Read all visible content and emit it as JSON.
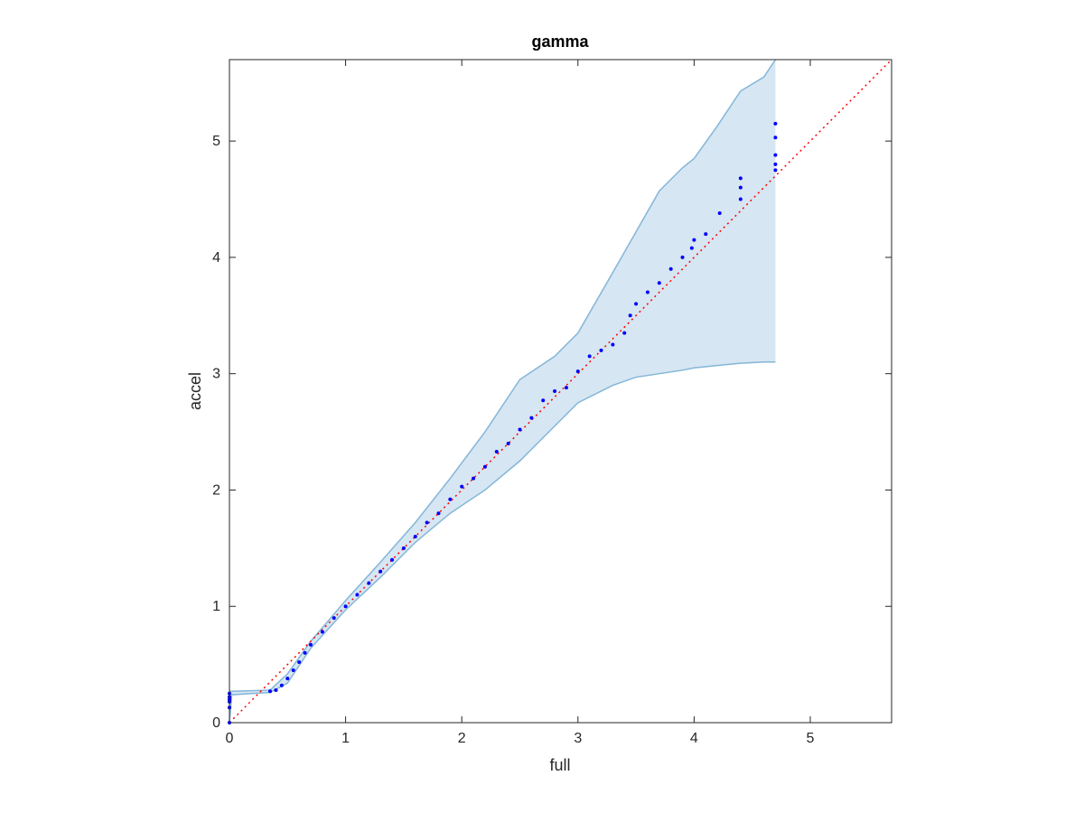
{
  "chart_data": {
    "type": "scatter",
    "title": "gamma",
    "x_label": "full",
    "y_label": "accel",
    "xlim": [
      0,
      5.7
    ],
    "ylim": [
      0,
      5.7
    ],
    "xticks": [
      0,
      1,
      2,
      3,
      4,
      5
    ],
    "yticks": [
      0,
      1,
      2,
      3,
      4,
      5
    ],
    "grid": false,
    "points": {
      "color": "#0000ff",
      "x": [
        0,
        0,
        0,
        0,
        0,
        0,
        0.35,
        0.4,
        0.45,
        0.5,
        0.55,
        0.6,
        0.65,
        0.7,
        0.8,
        0.9,
        1.0,
        1.1,
        1.2,
        1.3,
        1.4,
        1.5,
        1.6,
        1.7,
        1.8,
        1.9,
        2.0,
        2.1,
        2.2,
        2.3,
        2.4,
        2.5,
        2.6,
        2.7,
        2.8,
        2.9,
        3.0,
        3.1,
        3.2,
        3.3,
        3.4,
        3.45,
        3.5,
        3.6,
        3.7,
        3.8,
        3.9,
        3.98,
        4.0,
        4.1,
        4.22,
        4.4,
        4.4,
        4.4,
        4.7,
        4.7,
        4.7,
        4.7,
        4.7
      ],
      "y": [
        0,
        0.13,
        0.18,
        0.2,
        0.22,
        0.25,
        0.27,
        0.28,
        0.32,
        0.38,
        0.45,
        0.52,
        0.6,
        0.67,
        0.78,
        0.9,
        1.0,
        1.1,
        1.2,
        1.3,
        1.4,
        1.5,
        1.6,
        1.72,
        1.8,
        1.92,
        2.03,
        2.1,
        2.2,
        2.33,
        2.4,
        2.52,
        2.62,
        2.77,
        2.85,
        2.88,
        3.02,
        3.15,
        3.2,
        3.25,
        3.35,
        3.5,
        3.6,
        3.7,
        3.78,
        3.9,
        4.0,
        4.08,
        4.15,
        4.2,
        4.38,
        4.5,
        4.6,
        4.68,
        4.75,
        4.8,
        4.88,
        5.03,
        5.15
      ]
    },
    "band": {
      "color": "#d6e6f2",
      "edge_color": "#84b6d8",
      "x": [
        0,
        0.02,
        0.35,
        0.5,
        0.7,
        1.0,
        1.3,
        1.6,
        1.9,
        2.2,
        2.5,
        2.8,
        3.0,
        3.3,
        3.5,
        3.7,
        3.9,
        4.0,
        4.2,
        4.4,
        4.6,
        4.7
      ],
      "upper": [
        0.27,
        0.27,
        0.28,
        0.42,
        0.7,
        1.05,
        1.38,
        1.72,
        2.1,
        2.5,
        2.95,
        3.15,
        3.35,
        3.87,
        4.22,
        4.57,
        4.77,
        4.85,
        5.13,
        5.43,
        5.55,
        5.7
      ],
      "lower": [
        0,
        0.24,
        0.26,
        0.34,
        0.64,
        0.97,
        1.25,
        1.55,
        1.8,
        2.0,
        2.25,
        2.55,
        2.75,
        2.9,
        2.97,
        3.0,
        3.03,
        3.05,
        3.07,
        3.09,
        3.1,
        3.1
      ]
    },
    "reference": {
      "color": "#ff0000",
      "x": [
        0,
        5.7
      ],
      "y": [
        0,
        5.7
      ]
    }
  }
}
